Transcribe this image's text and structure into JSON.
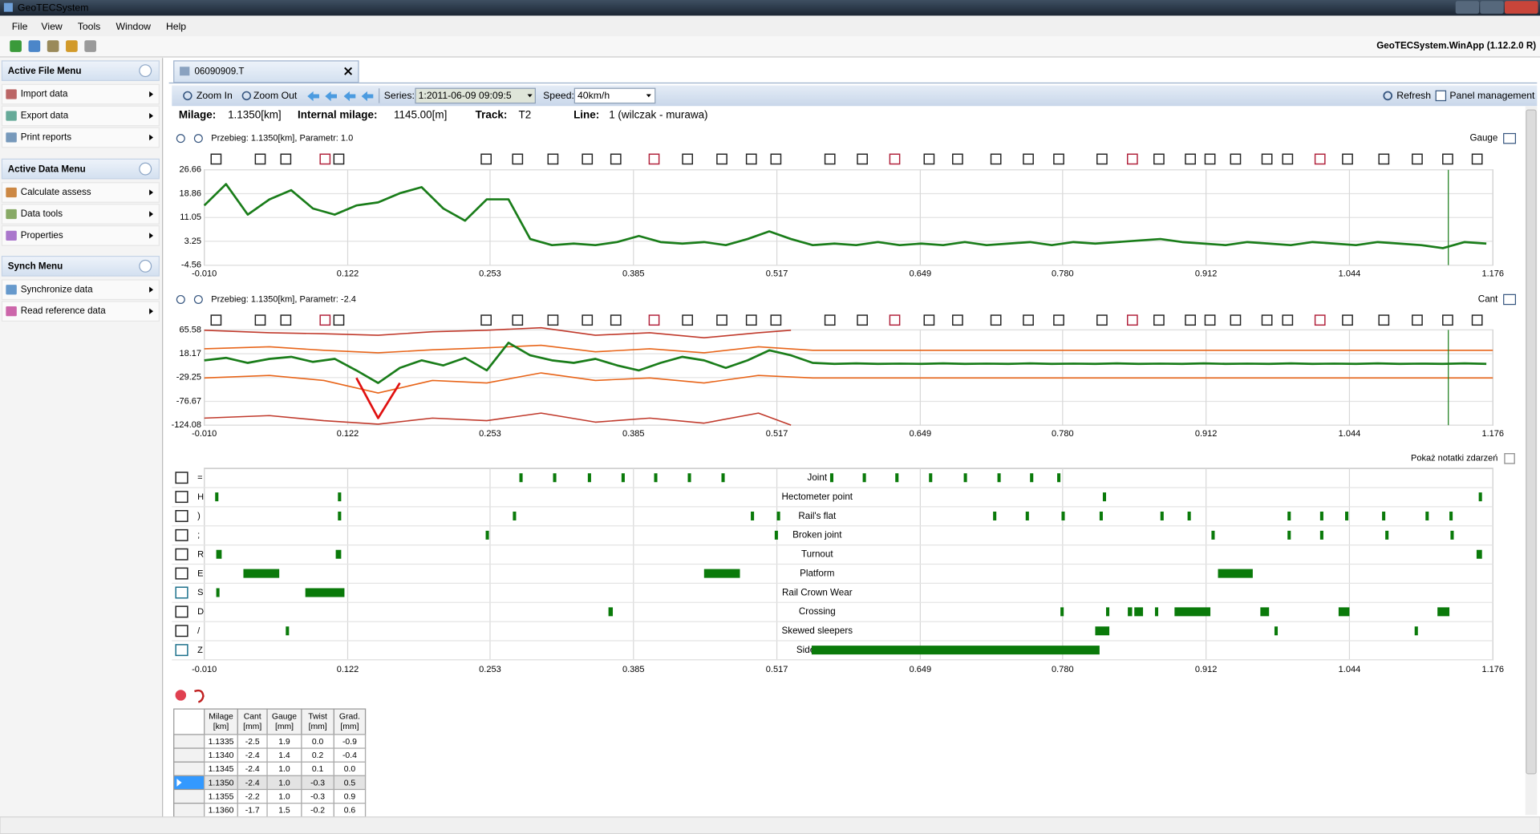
{
  "window": {
    "title": "GeoTECSystem",
    "version": "GeoTECSystem.WinApp (1.12.2.0 R)"
  },
  "menu": [
    "File",
    "View",
    "Tools",
    "Window",
    "Help"
  ],
  "sidebar": [
    {
      "title": "Active File Menu",
      "items": [
        "Import data",
        "Export data",
        "Print reports"
      ]
    },
    {
      "title": "Active Data Menu",
      "items": [
        "Calculate assess",
        "Data tools",
        "Properties"
      ]
    },
    {
      "title": "Synch Menu",
      "items": [
        "Synchronize data",
        "Read reference data"
      ]
    }
  ],
  "tab": "06090909.T",
  "toolbar": {
    "zoom_in": "Zoom In",
    "zoom_out": "Zoom Out",
    "series_label": "Series:",
    "series_value": "1:2011-06-09 09:09:5",
    "speed_label": "Speed:",
    "speed_value": "40km/h",
    "refresh": "Refresh",
    "panel": "Panel management"
  },
  "info": [
    [
      "Milage:",
      "1.1350[km]"
    ],
    [
      "Internal milage:",
      "1145.00[m]"
    ],
    [
      "Track:",
      "T2"
    ],
    [
      "Line:",
      "1 (wilczak - murawa)"
    ]
  ],
  "charts": [
    {
      "type": "line",
      "header": "Przebieg: 1.1350[km],  Parametr: 1.0",
      "name": "Gauge",
      "xlim": [
        -0.01,
        1.176
      ],
      "xticks": [
        {
          "value": -0.01,
          "label": "-0.010"
        },
        0.122,
        0.253,
        0.385,
        0.517,
        0.649,
        {
          "value": 0.78,
          "label": "0.780"
        },
        0.912,
        1.044,
        1.176
      ],
      "ylim": [
        -4.56,
        26.66
      ],
      "yticks": [
        26.66,
        18.86,
        11.05,
        3.25,
        -4.56
      ],
      "grid": true,
      "cursor": 1.135,
      "x": [
        -0.01,
        0.01,
        0.03,
        0.05,
        0.07,
        0.09,
        0.11,
        0.13,
        0.15,
        0.17,
        0.19,
        0.21,
        0.23,
        0.25,
        0.27,
        0.29,
        0.31,
        0.33,
        0.35,
        0.37,
        0.39,
        0.41,
        0.43,
        0.45,
        0.47,
        0.49,
        0.51,
        0.53,
        0.55,
        0.57,
        0.59,
        0.61,
        0.63,
        0.65,
        0.67,
        0.69,
        0.71,
        0.73,
        0.75,
        0.77,
        0.79,
        0.81,
        0.83,
        0.85,
        0.87,
        0.89,
        0.91,
        0.93,
        0.95,
        0.97,
        0.99,
        1.01,
        1.03,
        1.05,
        1.07,
        1.09,
        1.11,
        1.13,
        1.15,
        1.17
      ],
      "series": [
        {
          "color": "#1a7d1a",
          "values": [
            15,
            22,
            12,
            17,
            20,
            14,
            12,
            15,
            16,
            19,
            21,
            14,
            10,
            17,
            17,
            4,
            2,
            2.5,
            2,
            3,
            5,
            3,
            2.5,
            3,
            2,
            4,
            6.5,
            4,
            2,
            2.5,
            2,
            3,
            2,
            2.5,
            2,
            3,
            2,
            2.5,
            3,
            2,
            3,
            2.5,
            3,
            3.5,
            4,
            3,
            2.5,
            2,
            3,
            2.5,
            2,
            3,
            2.5,
            2,
            3,
            2.5,
            2,
            1,
            3,
            2.5
          ]
        }
      ]
    },
    {
      "type": "line",
      "header": "Przebieg: 1.1350[km],  Parametr: -2.4",
      "name": "Cant",
      "xlim": [
        -0.01,
        1.176
      ],
      "xticks": [
        {
          "value": -0.01,
          "label": "-0.010"
        },
        0.122,
        0.253,
        0.385,
        0.517,
        0.649,
        {
          "value": 0.78,
          "label": "0.780"
        },
        0.912,
        1.044,
        1.176
      ],
      "ylim": [
        -124.08,
        65.58
      ],
      "yticks": [
        65.58,
        18.17,
        -29.25,
        -76.67,
        -124.08
      ],
      "grid": true,
      "cursor": 1.135,
      "x": [
        -0.01,
        0.01,
        0.03,
        0.05,
        0.07,
        0.09,
        0.11,
        0.13,
        0.15,
        0.17,
        0.19,
        0.21,
        0.23,
        0.25,
        0.27,
        0.29,
        0.31,
        0.33,
        0.35,
        0.37,
        0.39,
        0.41,
        0.43,
        0.45,
        0.47,
        0.49,
        0.51,
        0.53,
        0.55,
        0.57,
        0.59,
        0.61,
        0.63,
        0.65,
        0.67,
        0.69,
        0.71,
        0.73,
        0.75,
        0.77,
        0.79,
        0.81,
        0.83,
        0.85,
        0.87,
        0.89,
        0.91,
        0.93,
        0.95,
        0.97,
        0.99,
        1.01,
        1.03,
        1.05,
        1.07,
        1.09,
        1.11,
        1.13,
        1.15,
        1.17
      ],
      "series": [
        {
          "color": "#e8651a",
          "x": [
            -0.01,
            0.05,
            0.1,
            0.15,
            0.2,
            0.25,
            0.3,
            0.35,
            0.4,
            0.45,
            0.5,
            0.55,
            1.176
          ],
          "values": [
            28,
            32,
            25,
            20,
            26,
            30,
            35,
            22,
            28,
            20,
            32,
            25,
            25
          ]
        },
        {
          "color": "#e8651a",
          "x": [
            -0.01,
            0.05,
            0.1,
            0.15,
            0.2,
            0.25,
            0.3,
            0.35,
            0.4,
            0.45,
            0.5,
            0.55,
            1.176
          ],
          "values": [
            -30,
            -25,
            -35,
            -60,
            -35,
            -40,
            -20,
            -35,
            -30,
            -40,
            -25,
            -30,
            -30
          ]
        },
        {
          "color": "#c0392b",
          "x": [
            -0.01,
            0.05,
            0.1,
            0.15,
            0.2,
            0.25,
            0.3,
            0.35,
            0.4,
            0.45,
            0.5,
            0.53
          ],
          "values": [
            65,
            60,
            58,
            55,
            62,
            65,
            70,
            55,
            60,
            50,
            60,
            65
          ]
        },
        {
          "color": "#c0392b",
          "x": [
            -0.01,
            0.05,
            0.1,
            0.15,
            0.2,
            0.25,
            0.3,
            0.35,
            0.4,
            0.45,
            0.5,
            0.53
          ],
          "values": [
            -110,
            -105,
            -115,
            -122,
            -110,
            -115,
            -100,
            -118,
            -110,
            -120,
            -100,
            -124
          ]
        },
        {
          "color": "#1a7d1a",
          "values": [
            5,
            10,
            0,
            8,
            12,
            2,
            8,
            -15,
            -40,
            -10,
            5,
            -5,
            10,
            -15,
            40,
            15,
            5,
            0,
            8,
            -5,
            -15,
            0,
            12,
            5,
            -10,
            5,
            25,
            15,
            0,
            -2,
            -1,
            -2,
            -1.5,
            -2,
            -1,
            -2,
            -1.5,
            -2,
            -1,
            -2,
            -1.5,
            -2,
            -1,
            -2,
            -1.5,
            -2,
            -1,
            -2,
            -1.5,
            -2,
            -1,
            -2,
            -1.5,
            -2,
            -1,
            -2,
            -1.5,
            -2,
            -1,
            -2
          ]
        },
        {
          "color": "#e01010",
          "values": [
            null,
            null,
            null,
            null,
            null,
            null,
            null,
            -30,
            -110,
            -40,
            null,
            null,
            null,
            null,
            null,
            null,
            null,
            null,
            null,
            null,
            null,
            null,
            null,
            null,
            null,
            null,
            null,
            null,
            null,
            null,
            null,
            null,
            null,
            null,
            null,
            null,
            null,
            null,
            null,
            null,
            null,
            null,
            null,
            null,
            null,
            null,
            null,
            null,
            null,
            null,
            null,
            null,
            null,
            null,
            null,
            null,
            null,
            null,
            null,
            null
          ]
        }
      ]
    }
  ],
  "events": {
    "toggle": "Pokaż notatki zdarzeń",
    "color": "#0a7a0a",
    "xlim": [
      -0.01,
      1.176
    ],
    "xticks": [
      {
        "value": -0.01,
        "label": "-0.010"
      },
      0.122,
      0.253,
      0.385,
      0.517,
      0.649,
      {
        "value": 0.78,
        "label": "0.780"
      },
      0.912,
      1.044,
      1.176
    ],
    "rows": [
      {
        "key": "=",
        "label": "Joint",
        "spans": [
          [
            0.28,
            0.283
          ],
          [
            0.311,
            0.314
          ],
          [
            0.343,
            0.346
          ],
          [
            0.374,
            0.377
          ],
          [
            0.404,
            0.407
          ],
          [
            0.435,
            0.438
          ],
          [
            0.466,
            0.469
          ],
          [
            0.566,
            0.569
          ],
          [
            0.596,
            0.599
          ],
          [
            0.626,
            0.629
          ],
          [
            0.657,
            0.66
          ],
          [
            0.689,
            0.692
          ],
          [
            0.72,
            0.723
          ],
          [
            0.75,
            0.753
          ],
          [
            0.775,
            0.778
          ]
        ]
      },
      {
        "key": "H",
        "label": "Hectometer point",
        "spans": [
          [
            0.0,
            0.003
          ],
          [
            0.113,
            0.116
          ],
          [
            0.817,
            0.82
          ],
          [
            1.163,
            1.166
          ]
        ]
      },
      {
        "key": ")",
        "label": "Rail's flat",
        "spans": [
          [
            0.113,
            0.116
          ],
          [
            0.274,
            0.277
          ],
          [
            0.493,
            0.496
          ],
          [
            0.517,
            0.52
          ],
          [
            0.716,
            0.719
          ],
          [
            0.746,
            0.749
          ],
          [
            0.779,
            0.782
          ],
          [
            0.814,
            0.817
          ],
          [
            0.87,
            0.873
          ],
          [
            0.895,
            0.898
          ],
          [
            0.987,
            0.99
          ],
          [
            1.017,
            1.02
          ],
          [
            1.04,
            1.043
          ],
          [
            1.074,
            1.077
          ],
          [
            1.114,
            1.117
          ],
          [
            1.136,
            1.139
          ]
        ]
      },
      {
        "key": ";",
        "label": "Broken joint",
        "spans": [
          [
            0.249,
            0.252
          ],
          [
            0.515,
            0.518
          ],
          [
            0.917,
            0.92
          ],
          [
            0.987,
            0.99
          ],
          [
            1.017,
            1.02
          ],
          [
            1.077,
            1.08
          ],
          [
            1.137,
            1.14
          ]
        ]
      },
      {
        "key": "R",
        "label": "Turnout",
        "spans": [
          [
            0.001,
            0.006
          ],
          [
            0.111,
            0.116
          ],
          [
            1.161,
            1.166
          ]
        ]
      },
      {
        "key": "E",
        "label": "Platform",
        "spans": [
          [
            0.026,
            0.059
          ],
          [
            0.45,
            0.483
          ],
          [
            0.923,
            0.955
          ]
        ]
      },
      {
        "key": "S",
        "label": "Rail Crown Wear",
        "spans": [
          [
            0.001,
            0.004
          ],
          [
            0.083,
            0.119
          ]
        ]
      },
      {
        "key": "D",
        "label": "Crossing",
        "spans": [
          [
            0.362,
            0.366
          ],
          [
            0.778,
            0.781
          ],
          [
            0.82,
            0.823
          ],
          [
            0.84,
            0.844
          ],
          [
            0.846,
            0.854
          ],
          [
            0.865,
            0.868
          ],
          [
            0.883,
            0.916
          ],
          [
            0.962,
            0.97
          ],
          [
            1.034,
            1.044
          ],
          [
            1.125,
            1.136
          ]
        ]
      },
      {
        "key": "/",
        "label": "Skewed sleepers",
        "spans": [
          [
            0.065,
            0.068
          ],
          [
            0.81,
            0.823
          ],
          [
            0.975,
            0.978
          ],
          [
            1.104,
            1.107
          ]
        ]
      },
      {
        "key": "Z",
        "label": "Side wear",
        "spans": [
          [
            0.549,
            0.814
          ]
        ]
      }
    ]
  },
  "table": {
    "header": [
      [
        "Milage",
        "[km]"
      ],
      [
        "Cant",
        "[mm]"
      ],
      [
        "Gauge",
        "[mm]"
      ],
      [
        "Twist",
        "[mm]"
      ],
      [
        "Grad.",
        "[mm]"
      ]
    ],
    "rows": [
      [
        "1.1335",
        "-2.5",
        "1.9",
        "0.0",
        "-0.9"
      ],
      [
        "1.1340",
        "-2.4",
        "1.4",
        "0.2",
        "-0.4"
      ],
      [
        "1.1345",
        "-2.4",
        "1.0",
        "0.1",
        "0.0"
      ],
      [
        "1.1350",
        "-2.4",
        "1.0",
        "-0.3",
        "0.5"
      ],
      [
        "1.1355",
        "-2.2",
        "1.0",
        "-0.3",
        "0.9"
      ],
      [
        "1.1360",
        "-1.7",
        "1.5",
        "-0.2",
        "0.6"
      ]
    ]
  }
}
